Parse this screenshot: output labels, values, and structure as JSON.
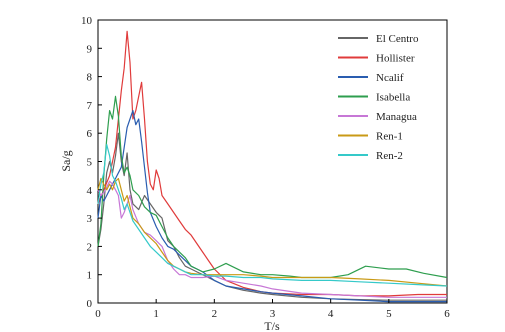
{
  "chart_data": {
    "type": "line",
    "xlabel": "T/s",
    "ylabel": "Sa/g",
    "xlim": [
      0,
      6
    ],
    "ylim": [
      0,
      10
    ],
    "xticks": [
      0,
      1,
      2,
      3,
      4,
      5,
      6
    ],
    "yticks": [
      0,
      1,
      2,
      3,
      4,
      5,
      6,
      7,
      8,
      9,
      10
    ],
    "legend_position": "top-right",
    "grid": false,
    "series": [
      {
        "name": "El Centro",
        "color": "#666666",
        "x": [
          0,
          0.05,
          0.1,
          0.15,
          0.2,
          0.25,
          0.3,
          0.35,
          0.4,
          0.45,
          0.5,
          0.55,
          0.6,
          0.7,
          0.8,
          0.9,
          1.0,
          1.1,
          1.2,
          1.3,
          1.4,
          1.5,
          1.6,
          1.7,
          1.8,
          2.0,
          2.2,
          2.5,
          2.8,
          3.0,
          3.5,
          4.0,
          4.5,
          5.0,
          5.5,
          6.0
        ],
        "values": [
          2.0,
          2.6,
          3.5,
          4.6,
          5.0,
          4.6,
          5.2,
          6.0,
          5.0,
          4.5,
          5.3,
          4.0,
          3.5,
          3.3,
          3.8,
          3.5,
          3.2,
          3.0,
          2.2,
          2.0,
          1.6,
          1.3,
          1.2,
          1.1,
          1.0,
          0.8,
          0.6,
          0.45,
          0.35,
          0.3,
          0.2,
          0.15,
          0.12,
          0.1,
          0.1,
          0.1
        ]
      },
      {
        "name": "Hollister",
        "color": "#e03b3b",
        "x": [
          0,
          0.1,
          0.2,
          0.3,
          0.4,
          0.45,
          0.5,
          0.55,
          0.6,
          0.65,
          0.7,
          0.75,
          0.8,
          0.85,
          0.9,
          0.95,
          1.0,
          1.05,
          1.1,
          1.2,
          1.3,
          1.4,
          1.5,
          1.6,
          1.7,
          1.8,
          1.9,
          2.0,
          2.2,
          2.5,
          2.8,
          3.0,
          3.5,
          4.0,
          4.5,
          5.0,
          5.5,
          6.0
        ],
        "values": [
          3.5,
          4.0,
          4.5,
          5.5,
          7.5,
          8.3,
          9.6,
          8.5,
          6.5,
          6.8,
          7.3,
          7.8,
          6.5,
          5.0,
          4.2,
          4.0,
          4.7,
          4.4,
          3.8,
          3.5,
          3.2,
          2.9,
          2.6,
          2.4,
          2.1,
          1.8,
          1.5,
          1.2,
          0.8,
          0.55,
          0.4,
          0.35,
          0.3,
          0.3,
          0.25,
          0.25,
          0.3,
          0.3
        ]
      },
      {
        "name": "Ncalif",
        "color": "#2a5db0",
        "x": [
          0,
          0.05,
          0.1,
          0.15,
          0.2,
          0.25,
          0.3,
          0.35,
          0.4,
          0.45,
          0.5,
          0.55,
          0.6,
          0.65,
          0.7,
          0.75,
          0.8,
          0.85,
          0.9,
          1.0,
          1.1,
          1.2,
          1.3,
          1.4,
          1.5,
          1.6,
          1.7,
          1.8,
          2.0,
          2.2,
          2.5,
          2.8,
          3.0,
          3.5,
          4.0,
          4.5,
          5.0,
          5.5,
          6.0
        ],
        "values": [
          3.0,
          3.8,
          3.6,
          3.8,
          4.0,
          4.2,
          4.4,
          4.6,
          4.8,
          5.5,
          6.2,
          6.5,
          6.8,
          6.3,
          6.5,
          5.7,
          4.8,
          3.9,
          3.2,
          2.7,
          2.3,
          2.0,
          1.9,
          1.7,
          1.5,
          1.3,
          1.2,
          1.1,
          0.8,
          0.6,
          0.5,
          0.4,
          0.35,
          0.25,
          0.15,
          0.1,
          0.05,
          0.05,
          0.05
        ]
      },
      {
        "name": "Isabella",
        "color": "#2e9e4e",
        "x": [
          0,
          0.05,
          0.1,
          0.15,
          0.2,
          0.25,
          0.3,
          0.35,
          0.4,
          0.45,
          0.5,
          0.55,
          0.6,
          0.7,
          0.8,
          0.9,
          1.0,
          1.1,
          1.2,
          1.3,
          1.4,
          1.5,
          1.6,
          1.7,
          1.8,
          2.0,
          2.2,
          2.5,
          2.8,
          3.0,
          3.3,
          3.5,
          4.0,
          4.3,
          4.6,
          5.0,
          5.3,
          5.6,
          6.0
        ],
        "values": [
          2.0,
          2.8,
          4.5,
          5.8,
          6.8,
          6.5,
          7.3,
          6.6,
          5.2,
          4.6,
          4.8,
          4.5,
          4.0,
          3.8,
          3.4,
          3.2,
          3.1,
          2.7,
          2.3,
          2.0,
          1.8,
          1.6,
          1.3,
          1.2,
          1.1,
          1.2,
          1.4,
          1.1,
          1.0,
          1.0,
          0.95,
          0.9,
          0.9,
          1.0,
          1.3,
          1.2,
          1.2,
          1.05,
          0.9
        ]
      },
      {
        "name": "Managua",
        "color": "#c777d6",
        "x": [
          0,
          0.05,
          0.1,
          0.15,
          0.2,
          0.25,
          0.3,
          0.35,
          0.4,
          0.45,
          0.5,
          0.55,
          0.6,
          0.7,
          0.8,
          0.9,
          1.0,
          1.1,
          1.2,
          1.3,
          1.4,
          1.5,
          1.6,
          1.8,
          2.0,
          2.2,
          2.5,
          2.8,
          3.0,
          3.5,
          4.0,
          4.5,
          5.0,
          5.5,
          6.0
        ],
        "values": [
          4.0,
          3.8,
          3.9,
          4.1,
          4.3,
          4.2,
          4.0,
          3.8,
          3.0,
          3.2,
          3.5,
          3.8,
          3.3,
          2.8,
          2.5,
          2.4,
          2.2,
          2.0,
          1.5,
          1.2,
          1.0,
          1.0,
          0.9,
          0.9,
          0.95,
          0.8,
          0.7,
          0.6,
          0.5,
          0.35,
          0.3,
          0.25,
          0.2,
          0.2,
          0.2
        ]
      },
      {
        "name": "Ren-1",
        "color": "#c99a16",
        "x": [
          0,
          0.05,
          0.1,
          0.15,
          0.2,
          0.25,
          0.3,
          0.35,
          0.4,
          0.45,
          0.5,
          0.55,
          0.6,
          0.7,
          0.8,
          0.9,
          1.0,
          1.1,
          1.2,
          1.3,
          1.4,
          1.5,
          1.6,
          1.8,
          2.0,
          2.2,
          2.5,
          2.8,
          3.0,
          3.5,
          4.0,
          4.5,
          5.0,
          5.5,
          6.0
        ],
        "values": [
          4.0,
          4.4,
          4.2,
          4.0,
          4.2,
          4.0,
          4.3,
          4.4,
          4.0,
          3.6,
          3.8,
          3.4,
          3.0,
          2.8,
          2.5,
          2.3,
          2.1,
          1.8,
          1.5,
          1.3,
          1.2,
          1.1,
          1.05,
          1.0,
          1.0,
          1.0,
          1.0,
          0.95,
          0.9,
          0.9,
          0.9,
          0.85,
          0.8,
          0.7,
          0.6
        ]
      },
      {
        "name": "Ren-2",
        "color": "#35c9c9",
        "x": [
          0,
          0.05,
          0.1,
          0.15,
          0.2,
          0.25,
          0.3,
          0.35,
          0.4,
          0.45,
          0.5,
          0.55,
          0.6,
          0.7,
          0.8,
          0.9,
          1.0,
          1.1,
          1.2,
          1.3,
          1.4,
          1.5,
          1.6,
          1.8,
          2.0,
          2.2,
          2.5,
          2.8,
          3.0,
          3.5,
          4.0,
          4.5,
          5.0,
          5.5,
          6.0
        ],
        "values": [
          3.5,
          4.2,
          4.6,
          5.6,
          5.2,
          4.5,
          4.3,
          4.0,
          3.7,
          3.3,
          3.5,
          3.2,
          2.9,
          2.6,
          2.3,
          2.0,
          1.8,
          1.6,
          1.4,
          1.3,
          1.2,
          1.1,
          1.0,
          1.0,
          0.95,
          0.95,
          0.9,
          0.9,
          0.85,
          0.8,
          0.8,
          0.75,
          0.7,
          0.65,
          0.6
        ]
      }
    ]
  }
}
